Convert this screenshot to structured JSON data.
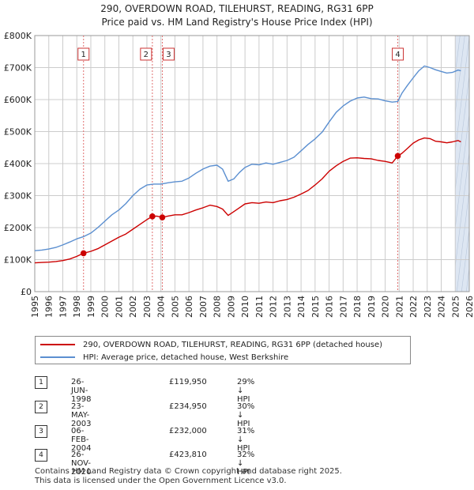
{
  "title_line1": "290, OVERDOWN ROAD, TILEHURST, READING, RG31 6PP",
  "title_line2": "Price paid vs. HM Land Registry's House Price Index (HPI)",
  "colors": {
    "price_line": "#cc0000",
    "hpi_line": "#5b8fd0",
    "marker": "#cc0000",
    "vline": "#e07070",
    "shade": "#dde6f2",
    "grid": "#cccccc"
  },
  "legend": {
    "price_label": "290, OVERDOWN ROAD, TILEHURST, READING, RG31 6PP (detached house)",
    "hpi_label": "HPI: Average price, detached house, West Berkshire"
  },
  "transactions": [
    {
      "num": "1",
      "date": "26-JUN-1998",
      "price": "£119,950",
      "hpi": "29% ↓ HPI"
    },
    {
      "num": "2",
      "date": "23-MAY-2003",
      "price": "£234,950",
      "hpi": "30% ↓ HPI"
    },
    {
      "num": "3",
      "date": "06-FEB-2004",
      "price": "£232,000",
      "hpi": "31% ↓ HPI"
    },
    {
      "num": "4",
      "date": "26-NOV-2020",
      "price": "£423,810",
      "hpi": "32% ↓ HPI"
    }
  ],
  "footer_line1": "Contains HM Land Registry data © Crown copyright and database right 2025.",
  "footer_line2": "This data is licensed under the Open Government Licence v3.0.",
  "chart_data": {
    "type": "line",
    "title": "Price paid vs. HM Land Registry's House Price Index (HPI)",
    "xlim": [
      1995,
      2026
    ],
    "ylim": [
      0,
      800000
    ],
    "x_ticks": [
      1995,
      1996,
      1997,
      1998,
      1999,
      2000,
      2001,
      2002,
      2003,
      2004,
      2005,
      2006,
      2007,
      2008,
      2009,
      2010,
      2011,
      2012,
      2013,
      2014,
      2015,
      2016,
      2017,
      2018,
      2019,
      2020,
      2021,
      2022,
      2023,
      2024,
      2025,
      2026
    ],
    "y_ticks": [
      {
        "value": 0,
        "label": "£0"
      },
      {
        "value": 100000,
        "label": "£100K"
      },
      {
        "value": 200000,
        "label": "£200K"
      },
      {
        "value": 300000,
        "label": "£300K"
      },
      {
        "value": 400000,
        "label": "£400K"
      },
      {
        "value": 500000,
        "label": "£500K"
      },
      {
        "value": 600000,
        "label": "£600K"
      },
      {
        "value": 700000,
        "label": "£700K"
      },
      {
        "value": 800000,
        "label": "£800K"
      }
    ],
    "shaded_future_from": 2025.0,
    "sales": [
      {
        "label": "1",
        "x": 1998.48,
        "y": 119950
      },
      {
        "label": "2",
        "x": 2003.39,
        "y": 234950
      },
      {
        "label": "3",
        "x": 2004.1,
        "y": 232000
      },
      {
        "label": "4",
        "x": 2020.9,
        "y": 423810
      }
    ],
    "series": [
      {
        "name": "290, OVERDOWN ROAD, TILEHURST, READING, RG31 6PP (detached house)",
        "x": [
          1995.0,
          1995.5,
          1996.0,
          1996.5,
          1997.0,
          1997.5,
          1998.0,
          1998.48,
          1999.0,
          1999.5,
          2000.0,
          2000.5,
          2001.0,
          2001.5,
          2002.0,
          2002.5,
          2003.0,
          2003.39,
          2003.7,
          2004.1,
          2004.5,
          2005.0,
          2005.5,
          2006.0,
          2006.5,
          2007.0,
          2007.5,
          2008.0,
          2008.4,
          2008.8,
          2009.2,
          2009.6,
          2010.0,
          2010.5,
          2011.0,
          2011.5,
          2012.0,
          2012.5,
          2013.0,
          2013.5,
          2014.0,
          2014.5,
          2015.0,
          2015.5,
          2016.0,
          2016.5,
          2017.0,
          2017.5,
          2018.0,
          2018.5,
          2019.0,
          2019.5,
          2020.0,
          2020.5,
          2020.9,
          2021.2,
          2021.6,
          2022.0,
          2022.4,
          2022.8,
          2023.2,
          2023.6,
          2024.0,
          2024.4,
          2024.8,
          2025.2,
          2025.4
        ],
        "values": [
          90000,
          91000,
          92000,
          94000,
          97000,
          102000,
          110000,
          119950,
          126000,
          134000,
          146000,
          158000,
          170000,
          180000,
          195000,
          210000,
          225000,
          234950,
          236000,
          232000,
          236000,
          240000,
          240000,
          247000,
          255000,
          262000,
          270000,
          266000,
          258000,
          238000,
          250000,
          262000,
          274000,
          278000,
          276000,
          280000,
          278000,
          284000,
          288000,
          295000,
          305000,
          316000,
          333000,
          352000,
          376000,
          393000,
          407000,
          417000,
          418000,
          416000,
          415000,
          410000,
          407000,
          402000,
          423810,
          432000,
          448000,
          464000,
          474000,
          480000,
          478000,
          470000,
          468000,
          465000,
          468000,
          472000,
          468000
        ]
      },
      {
        "name": "HPI: Average price, detached house, West Berkshire",
        "x": [
          1995.0,
          1995.5,
          1996.0,
          1996.5,
          1997.0,
          1997.5,
          1998.0,
          1998.5,
          1999.0,
          1999.5,
          2000.0,
          2000.5,
          2001.0,
          2001.5,
          2002.0,
          2002.5,
          2003.0,
          2003.5,
          2004.0,
          2004.5,
          2005.0,
          2005.5,
          2006.0,
          2006.5,
          2007.0,
          2007.5,
          2008.0,
          2008.4,
          2008.8,
          2009.2,
          2009.6,
          2010.0,
          2010.5,
          2011.0,
          2011.5,
          2012.0,
          2012.5,
          2013.0,
          2013.5,
          2014.0,
          2014.5,
          2015.0,
          2015.5,
          2016.0,
          2016.5,
          2017.0,
          2017.5,
          2018.0,
          2018.5,
          2019.0,
          2019.5,
          2020.0,
          2020.5,
          2020.9,
          2021.2,
          2021.6,
          2022.0,
          2022.4,
          2022.8,
          2023.2,
          2023.6,
          2024.0,
          2024.4,
          2024.8,
          2025.2,
          2025.4
        ],
        "values": [
          128000,
          130000,
          133000,
          138000,
          146000,
          155000,
          165000,
          172000,
          183000,
          200000,
          220000,
          240000,
          255000,
          275000,
          300000,
          320000,
          333000,
          336000,
          336000,
          340000,
          343000,
          345000,
          355000,
          370000,
          383000,
          392000,
          395000,
          383000,
          345000,
          352000,
          372000,
          388000,
          398000,
          396000,
          402000,
          398000,
          404000,
          410000,
          420000,
          440000,
          460000,
          477000,
          498000,
          530000,
          560000,
          580000,
          595000,
          605000,
          608000,
          603000,
          602000,
          596000,
          592000,
          594000,
          620000,
          645000,
          668000,
          690000,
          705000,
          700000,
          693000,
          688000,
          683000,
          685000,
          692000,
          690000
        ]
      }
    ]
  }
}
